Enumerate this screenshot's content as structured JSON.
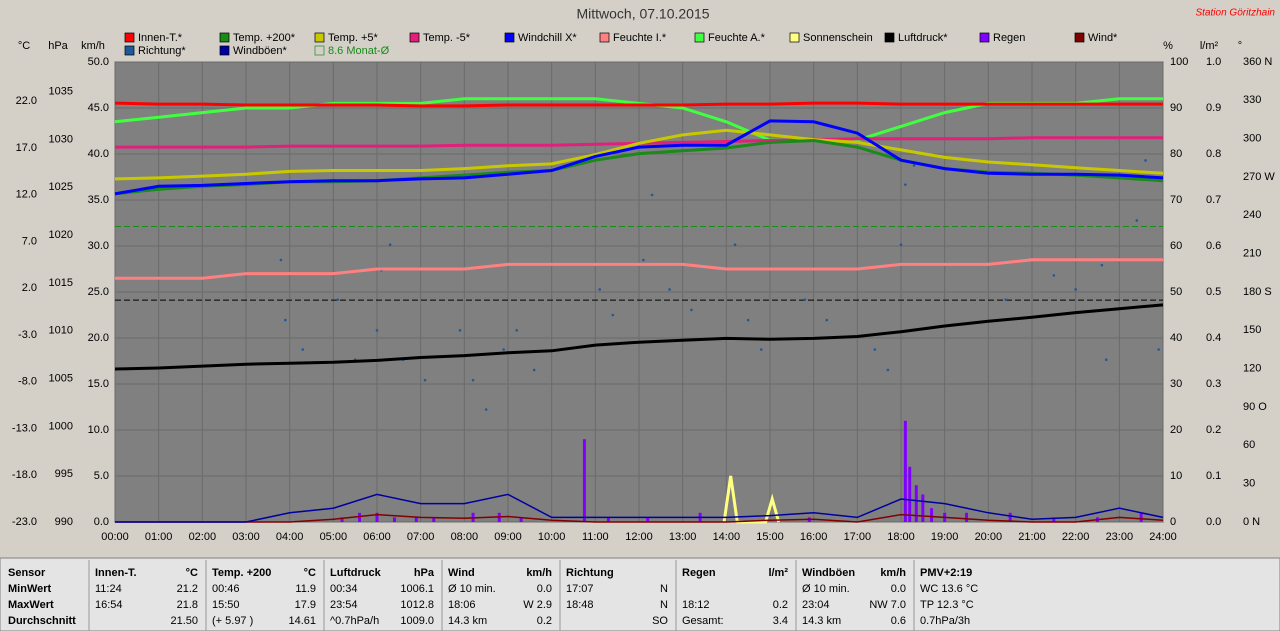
{
  "chart_data": {
    "type": "line",
    "title": "Mittwoch, 07.10.2015",
    "station": "Station Göritzhain",
    "grid": true,
    "xlim": [
      0,
      24
    ],
    "xticks": [
      {
        "value": 0,
        "label": "00:00"
      },
      {
        "value": 1,
        "label": "01:00"
      },
      {
        "value": 2,
        "label": "02:00"
      },
      {
        "value": 3,
        "label": "03:00"
      },
      {
        "value": 4,
        "label": "04:00"
      },
      {
        "value": 5,
        "label": "05:00"
      },
      {
        "value": 6,
        "label": "06:00"
      },
      {
        "value": 7,
        "label": "07:00"
      },
      {
        "value": 8,
        "label": "08:00"
      },
      {
        "value": 9,
        "label": "09:00"
      },
      {
        "value": 10,
        "label": "10:00"
      },
      {
        "value": 11,
        "label": "11:00"
      },
      {
        "value": 12,
        "label": "12:00"
      },
      {
        "value": 13,
        "label": "13:00"
      },
      {
        "value": 14,
        "label": "14:00"
      },
      {
        "value": 15,
        "label": "15:00"
      },
      {
        "value": 16,
        "label": "16:00"
      },
      {
        "value": 17,
        "label": "17:00"
      },
      {
        "value": 18,
        "label": "18:00"
      },
      {
        "value": 19,
        "label": "19:00"
      },
      {
        "value": 20,
        "label": "20:00"
      },
      {
        "value": 21,
        "label": "21:00"
      },
      {
        "value": 22,
        "label": "22:00"
      },
      {
        "value": 23,
        "label": "23:00"
      },
      {
        "value": 24,
        "label": "24:00"
      }
    ],
    "axes": {
      "temp": {
        "unit": "°C",
        "side": "left",
        "ylim": [
          -23,
          26.2
        ],
        "yticks": [
          {
            "value": -23,
            "label": "-23.0"
          },
          {
            "value": -18,
            "label": "-18.0"
          },
          {
            "value": -13,
            "label": "-13.0"
          },
          {
            "value": -8,
            "label": "-8.0"
          },
          {
            "value": -3,
            "label": "-3.0"
          },
          {
            "value": 2,
            "label": "2.0"
          },
          {
            "value": 7,
            "label": "7.0"
          },
          {
            "value": 12,
            "label": "12.0"
          },
          {
            "value": 17,
            "label": "17.0"
          },
          {
            "value": 22,
            "label": "22.0"
          }
        ]
      },
      "hpa": {
        "unit": "hPa",
        "side": "left",
        "ylim": [
          990,
          1038.1
        ],
        "yticks": [
          990,
          995,
          1000,
          1005,
          1010,
          1015,
          1020,
          1025,
          1030,
          1035
        ]
      },
      "kmh": {
        "unit": "km/h",
        "side": "left",
        "ylim": [
          0,
          50
        ],
        "yticks": [
          {
            "value": 0,
            "label": "0.0"
          },
          {
            "value": 5,
            "label": "5.0"
          },
          {
            "value": 10,
            "label": "10.0"
          },
          {
            "value": 15,
            "label": "15.0"
          },
          {
            "value": 20,
            "label": "20.0"
          },
          {
            "value": 25,
            "label": "25.0"
          },
          {
            "value": 30,
            "label": "30.0"
          },
          {
            "value": 35,
            "label": "35.0"
          },
          {
            "value": 40,
            "label": "40.0"
          },
          {
            "value": 45,
            "label": "45.0"
          },
          {
            "value": 50,
            "label": "50.0"
          }
        ]
      },
      "pct": {
        "unit": "%",
        "side": "right",
        "ylim": [
          0,
          100
        ],
        "yticks": [
          0,
          10,
          20,
          30,
          40,
          50,
          60,
          70,
          80,
          90,
          100
        ]
      },
      "rain": {
        "unit": "l/m²",
        "side": "right",
        "ylim": [
          0,
          1
        ],
        "yticks": [
          {
            "value": 0,
            "label": "0.0"
          },
          {
            "value": 0.1,
            "label": "0.1"
          },
          {
            "value": 0.2,
            "label": "0.2"
          },
          {
            "value": 0.3,
            "label": "0.3"
          },
          {
            "value": 0.4,
            "label": "0.4"
          },
          {
            "value": 0.5,
            "label": "0.5"
          },
          {
            "value": 0.6,
            "label": "0.6"
          },
          {
            "value": 0.7,
            "label": "0.7"
          },
          {
            "value": 0.8,
            "label": "0.8"
          },
          {
            "value": 0.9,
            "label": "0.9"
          },
          {
            "value": 1,
            "label": "1.0"
          }
        ]
      },
      "deg": {
        "unit": "°",
        "side": "right",
        "ylim": [
          0,
          360
        ],
        "yticks": [
          {
            "value": 0,
            "label": "0 N"
          },
          30,
          60,
          {
            "value": 90,
            "label": "90 O"
          },
          120,
          150,
          {
            "value": 180,
            "label": "180 S"
          },
          210,
          240,
          {
            "value": 270,
            "label": "270 W"
          },
          300,
          330,
          {
            "value": 360,
            "label": "360 N"
          }
        ]
      }
    },
    "x": [
      0,
      1,
      2,
      3,
      4,
      5,
      6,
      7,
      8,
      9,
      10,
      11,
      12,
      13,
      14,
      15,
      16,
      17,
      18,
      19,
      20,
      21,
      22,
      23,
      24
    ],
    "series": [
      {
        "name": "Innen-T.*",
        "color": "#ff0000",
        "axis": "temp",
        "mark": "line",
        "values": [
          21.8,
          21.7,
          21.7,
          21.6,
          21.6,
          21.6,
          21.6,
          21.5,
          21.5,
          21.6,
          21.6,
          21.6,
          21.6,
          21.6,
          21.7,
          21.7,
          21.8,
          21.8,
          21.7,
          21.7,
          21.7,
          21.7,
          21.7,
          21.7,
          21.7
        ]
      },
      {
        "name": "Temp. +200*",
        "color": "#1a8a1a",
        "axis": "temp",
        "mark": "line",
        "values": [
          12.1,
          12.6,
          12.9,
          13.1,
          13.4,
          13.4,
          13.5,
          13.8,
          14.1,
          14.4,
          14.6,
          15.7,
          16.4,
          16.7,
          17.0,
          17.6,
          17.8,
          17.1,
          15.7,
          14.8,
          14.4,
          14.3,
          14.1,
          13.8,
          13.5
        ]
      },
      {
        "name": "Temp. +5*",
        "color": "#c8c800",
        "axis": "temp",
        "mark": "line",
        "values": [
          13.7,
          13.8,
          14.0,
          14.2,
          14.5,
          14.6,
          14.6,
          14.6,
          14.8,
          15.1,
          15.3,
          16.3,
          17.5,
          18.4,
          18.9,
          18.4,
          17.9,
          17.6,
          16.8,
          16.0,
          15.5,
          15.2,
          14.9,
          14.6,
          14.3
        ]
      },
      {
        "name": "Temp. -5*",
        "color": "#e0207a",
        "axis": "temp",
        "mark": "line",
        "values": [
          17.1,
          17.1,
          17.1,
          17.1,
          17.2,
          17.2,
          17.2,
          17.2,
          17.3,
          17.3,
          17.3,
          17.4,
          17.5,
          17.6,
          17.7,
          17.8,
          17.9,
          18.0,
          18.0,
          18.0,
          18.0,
          18.1,
          18.1,
          18.1,
          18.1
        ]
      },
      {
        "name": "Windchill X*",
        "color": "#0000ff",
        "axis": "temp",
        "mark": "line",
        "values": [
          12.1,
          12.9,
          13.0,
          13.2,
          13.4,
          13.5,
          13.5,
          13.7,
          13.8,
          14.2,
          14.6,
          16.1,
          17.1,
          17.3,
          17.3,
          19.9,
          19.8,
          18.6,
          15.7,
          14.8,
          14.3,
          14.2,
          14.2,
          14.1,
          13.8
        ]
      },
      {
        "name": "Feuchte I.*",
        "color": "#ff8080",
        "axis": "pct",
        "mark": "line",
        "values": [
          53,
          53,
          53,
          54,
          54,
          54,
          55,
          55,
          55,
          56,
          56,
          56,
          56,
          56,
          55,
          55,
          55,
          55,
          56,
          56,
          56,
          57,
          57,
          57,
          57
        ]
      },
      {
        "name": "Feuchte A.*",
        "color": "#40ff40",
        "axis": "pct",
        "mark": "line",
        "values": [
          87,
          88,
          89,
          90,
          90,
          91,
          91,
          91,
          92,
          92,
          92,
          92,
          91,
          90,
          87,
          83,
          83,
          83,
          86,
          89,
          91,
          91,
          91,
          92,
          92
        ]
      },
      {
        "name": "Sonnenschein",
        "color": "#ffff80",
        "axis": "pct",
        "mark": "line",
        "x": [
          13.95,
          14.1,
          14.25,
          14.9,
          15.05,
          15.2
        ],
        "values": [
          0,
          10,
          0,
          0,
          5,
          0
        ]
      },
      {
        "name": "Luftdruck*",
        "color": "#000000",
        "axis": "hpa",
        "mark": "line",
        "values": [
          1006.0,
          1006.1,
          1006.3,
          1006.5,
          1006.6,
          1006.7,
          1006.9,
          1007.2,
          1007.4,
          1007.7,
          1007.9,
          1008.5,
          1008.8,
          1009.0,
          1009.2,
          1009.1,
          1009.2,
          1009.4,
          1009.9,
          1010.5,
          1011.0,
          1011.4,
          1011.9,
          1012.3,
          1012.7
        ]
      },
      {
        "name": "Regen",
        "color": "#8000ff",
        "axis": "rain",
        "mark": "bars",
        "x": [
          5.2,
          5.6,
          6.0,
          6.4,
          6.9,
          7.3,
          8.2,
          8.8,
          9.3,
          10.75,
          11.3,
          12.2,
          13.4,
          15.9,
          18.1,
          18.2,
          18.35,
          18.5,
          18.7,
          19.0,
          19.5,
          20.5,
          21.5,
          22.5,
          23.5
        ],
        "values": [
          0.01,
          0.02,
          0.02,
          0.01,
          0.01,
          0.01,
          0.02,
          0.02,
          0.01,
          0.18,
          0.01,
          0.01,
          0.02,
          0.01,
          0.22,
          0.12,
          0.08,
          0.06,
          0.03,
          0.02,
          0.02,
          0.02,
          0.01,
          0.01,
          0.02
        ]
      },
      {
        "name": "Wind*",
        "color": "#800000",
        "axis": "kmh",
        "mark": "line",
        "values": [
          0,
          0,
          0,
          0,
          0,
          0.3,
          0.8,
          0.5,
          0.4,
          0.6,
          0.2,
          0,
          0,
          0,
          0,
          0.2,
          0.3,
          0,
          0.8,
          0.5,
          0.2,
          0,
          0,
          0.5,
          0.2
        ]
      },
      {
        "name": "Richtung*",
        "color": "#1e5a9a",
        "axis": "deg",
        "mark": "dots",
        "x": [
          3.8,
          3.9,
          4.3,
          5.1,
          5.5,
          6.0,
          6.1,
          6.3,
          6.6,
          7.1,
          7.9,
          8.2,
          8.5,
          8.9,
          9.2,
          9.6,
          11.1,
          11.4,
          12.1,
          12.3,
          12.7,
          13.2,
          14.2,
          14.5,
          14.8,
          15.8,
          16.3,
          17.4,
          17.7,
          18.0,
          18.1,
          18.3,
          20.4,
          21.5,
          22.0,
          22.6,
          22.7,
          23.4,
          23.6,
          23.9
        ],
        "values": [
          205,
          158,
          135,
          174,
          127,
          150,
          197,
          217,
          127,
          111,
          150,
          111,
          88,
          135,
          150,
          119,
          182,
          162,
          205,
          256,
          182,
          166,
          217,
          158,
          135,
          174,
          158,
          135,
          119,
          217,
          264,
          279,
          174,
          193,
          182,
          201,
          127,
          236,
          283,
          135
        ]
      },
      {
        "name": "Windböen*",
        "color": "#0000a0",
        "axis": "kmh",
        "mark": "line",
        "values": [
          0,
          0,
          0,
          0,
          1.0,
          1.5,
          3.0,
          2.0,
          2.0,
          3.0,
          0.5,
          0.5,
          0.5,
          0.5,
          0.5,
          0.7,
          1.0,
          0.5,
          2.5,
          2.0,
          1.0,
          0.3,
          0.5,
          1.5,
          0.5
        ]
      }
    ],
    "reference_lines": [
      {
        "name": "8.6 Monat-Ø",
        "value": 8.6,
        "axis": "temp",
        "color": "#1a8a1a"
      },
      {
        "value": 1013.2,
        "axis": "hpa",
        "color": "#000000"
      }
    ]
  },
  "stats": {
    "sensor_header": "Sensor",
    "row_labels": [
      "MinWert",
      "MaxWert",
      "Durchschnitt"
    ],
    "columns": [
      {
        "title": "Innen-T.",
        "unit": "°C",
        "rows": [
          [
            "11:24",
            "21.2"
          ],
          [
            "16:54",
            "21.8"
          ],
          [
            null,
            "21.50"
          ]
        ]
      },
      {
        "title": "Temp. +200",
        "unit": "°C",
        "rows": [
          [
            "00:46",
            "11.9"
          ],
          [
            "15:50",
            "17.9"
          ],
          [
            "(+ 5.97 )",
            "14.61"
          ]
        ]
      },
      {
        "title": "Luftdruck",
        "unit": "hPa",
        "rows": [
          [
            "00:34",
            "1006.1"
          ],
          [
            "23:54",
            "1012.8"
          ],
          [
            "^0.7hPa/h",
            "1009.0"
          ]
        ]
      },
      {
        "title": "Wind",
        "unit": "km/h",
        "rows": [
          [
            "Ø 10 min.",
            "0.0"
          ],
          [
            "18:06",
            "W 2.9"
          ],
          [
            "14.3 km",
            "0.2"
          ]
        ]
      },
      {
        "title": "Richtung",
        "unit": null,
        "rows": [
          [
            "17:07",
            "N"
          ],
          [
            "18:48",
            "N"
          ],
          [
            null,
            "SO"
          ]
        ]
      },
      {
        "title": "Regen",
        "unit": "l/m²",
        "rows": [
          [
            null,
            null
          ],
          [
            "18:12",
            "0.2"
          ],
          [
            "Gesamt:",
            "3.4"
          ]
        ]
      },
      {
        "title": "Windböen",
        "unit": "km/h",
        "rows": [
          [
            "Ø 10 min.",
            "0.0"
          ],
          [
            "23:04",
            "NW 7.0"
          ],
          [
            "14.3 km",
            "0.6"
          ]
        ]
      },
      {
        "title": "PMV+2:19",
        "unit": null,
        "rows": [
          [
            "WC 13.6 °C",
            null
          ],
          [
            "TP 12.3 °C",
            null
          ],
          [
            "0.7hPa/3h",
            null
          ]
        ]
      }
    ]
  }
}
